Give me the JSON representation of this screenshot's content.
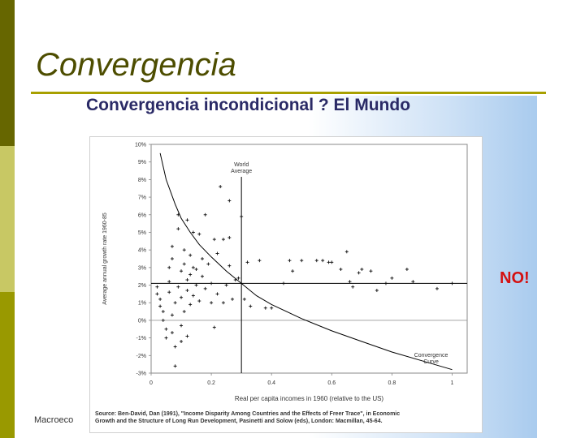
{
  "slide": {
    "title": "Convergencia",
    "footer": "Macroeco",
    "panel_title": "Convergencia incondicional ? El Mundo",
    "callout": "NO!",
    "colors": {
      "sidebar_dark": "#666600",
      "sidebar_light": "#c8c864",
      "sidebar_mid": "#999900",
      "title": "#4d4d00",
      "rule": "#a8a000",
      "callout": "#d41010"
    }
  },
  "chart_data": {
    "type": "scatter",
    "ylabel": "Average annual growth rate 1960-85",
    "xlabel": "Real per capita incomes in 1960 (relative to the US)",
    "x_ticks": [
      "0",
      "0.2",
      "0.4",
      "0.6",
      "0.8",
      "1"
    ],
    "y_ticks": [
      "10%",
      "9%",
      "8%",
      "7%",
      "6%",
      "5%",
      "4%",
      "3%",
      "2%",
      "1%",
      "0%",
      "-1%",
      "-2%",
      "-3%"
    ],
    "xlim": [
      0,
      1.05
    ],
    "ylim": [
      -3,
      10
    ],
    "world_average": {
      "label_line1": "World",
      "label_line2": "Average",
      "x": 0.3,
      "y": 2.1
    },
    "curve_label_line1": "Convergence",
    "curve_label_line2": "Curve",
    "curve": [
      [
        0.03,
        9.5
      ],
      [
        0.05,
        8.0
      ],
      [
        0.08,
        6.6
      ],
      [
        0.1,
        5.8
      ],
      [
        0.13,
        5.0
      ],
      [
        0.16,
        4.3
      ],
      [
        0.2,
        3.6
      ],
      [
        0.25,
        2.8
      ],
      [
        0.3,
        2.1
      ],
      [
        0.35,
        1.4
      ],
      [
        0.4,
        0.9
      ],
      [
        0.5,
        0.1
      ],
      [
        0.6,
        -0.6
      ],
      [
        0.7,
        -1.2
      ],
      [
        0.8,
        -1.8
      ],
      [
        0.9,
        -2.3
      ],
      [
        1.0,
        -2.8
      ]
    ],
    "points": [
      [
        0.02,
        1.9
      ],
      [
        0.02,
        1.5
      ],
      [
        0.03,
        1.2
      ],
      [
        0.03,
        0.8
      ],
      [
        0.04,
        0.5
      ],
      [
        0.04,
        0.0
      ],
      [
        0.05,
        -0.5
      ],
      [
        0.05,
        -1.0
      ],
      [
        0.06,
        1.6
      ],
      [
        0.06,
        2.2
      ],
      [
        0.06,
        3.0
      ],
      [
        0.07,
        4.2
      ],
      [
        0.07,
        3.5
      ],
      [
        0.07,
        0.3
      ],
      [
        0.07,
        -0.7
      ],
      [
        0.08,
        -1.5
      ],
      [
        0.08,
        -2.6
      ],
      [
        0.08,
        1.0
      ],
      [
        0.09,
        1.9
      ],
      [
        0.09,
        6.0
      ],
      [
        0.09,
        5.2
      ],
      [
        0.1,
        2.8
      ],
      [
        0.1,
        1.3
      ],
      [
        0.1,
        -0.3
      ],
      [
        0.1,
        -1.2
      ],
      [
        0.11,
        4.0
      ],
      [
        0.11,
        3.2
      ],
      [
        0.11,
        0.5
      ],
      [
        0.12,
        5.7
      ],
      [
        0.12,
        2.3
      ],
      [
        0.12,
        1.7
      ],
      [
        0.12,
        -0.9
      ],
      [
        0.13,
        3.7
      ],
      [
        0.13,
        2.6
      ],
      [
        0.13,
        0.9
      ],
      [
        0.14,
        5.0
      ],
      [
        0.14,
        3.0
      ],
      [
        0.14,
        1.4
      ],
      [
        0.15,
        2.0
      ],
      [
        0.15,
        2.9
      ],
      [
        0.16,
        1.1
      ],
      [
        0.16,
        4.9
      ],
      [
        0.17,
        3.5
      ],
      [
        0.17,
        2.5
      ],
      [
        0.18,
        6.0
      ],
      [
        0.18,
        1.8
      ],
      [
        0.19,
        3.2
      ],
      [
        0.2,
        2.1
      ],
      [
        0.2,
        1.0
      ],
      [
        0.21,
        4.6
      ],
      [
        0.21,
        -0.4
      ],
      [
        0.22,
        3.8
      ],
      [
        0.22,
        1.5
      ],
      [
        0.23,
        7.6
      ],
      [
        0.24,
        4.6
      ],
      [
        0.24,
        1.0
      ],
      [
        0.25,
        2.0
      ],
      [
        0.26,
        6.8
      ],
      [
        0.26,
        4.7
      ],
      [
        0.26,
        3.1
      ],
      [
        0.27,
        1.2
      ],
      [
        0.28,
        2.3
      ],
      [
        0.29,
        2.4
      ],
      [
        0.3,
        5.9
      ],
      [
        0.31,
        1.2
      ],
      [
        0.32,
        3.3
      ],
      [
        0.33,
        0.8
      ],
      [
        0.36,
        3.4
      ],
      [
        0.38,
        0.7
      ],
      [
        0.4,
        0.7
      ],
      [
        0.44,
        2.1
      ],
      [
        0.46,
        3.4
      ],
      [
        0.47,
        2.8
      ],
      [
        0.5,
        3.4
      ],
      [
        0.55,
        3.4
      ],
      [
        0.57,
        3.4
      ],
      [
        0.59,
        3.3
      ],
      [
        0.6,
        3.3
      ],
      [
        0.63,
        2.9
      ],
      [
        0.65,
        3.9
      ],
      [
        0.66,
        2.2
      ],
      [
        0.67,
        1.9
      ],
      [
        0.69,
        2.7
      ],
      [
        0.7,
        2.9
      ],
      [
        0.73,
        2.8
      ],
      [
        0.75,
        1.7
      ],
      [
        0.78,
        2.1
      ],
      [
        0.8,
        2.4
      ],
      [
        0.85,
        2.9
      ],
      [
        0.87,
        2.2
      ],
      [
        0.95,
        1.8
      ],
      [
        1.0,
        2.1
      ]
    ],
    "source": "Source: Ben-David, Dan (1991), \"Income Disparity Among Countries and the Effects of Freer Trace\", in Economic Growth and the Structure of Long Run Development, Pasinetti and Solow (eds), London: Macmillan, 45-64.",
    "source_line1": "Source: Ben-David, Dan (1991), \"Income Disparity Among Countries and the Effects of Freer Trace\", in Economic",
    "source_line2": "Growth and the Structure of Long Run Development, Pasinetti and Solow (eds), London: Macmillan, 45-64."
  }
}
